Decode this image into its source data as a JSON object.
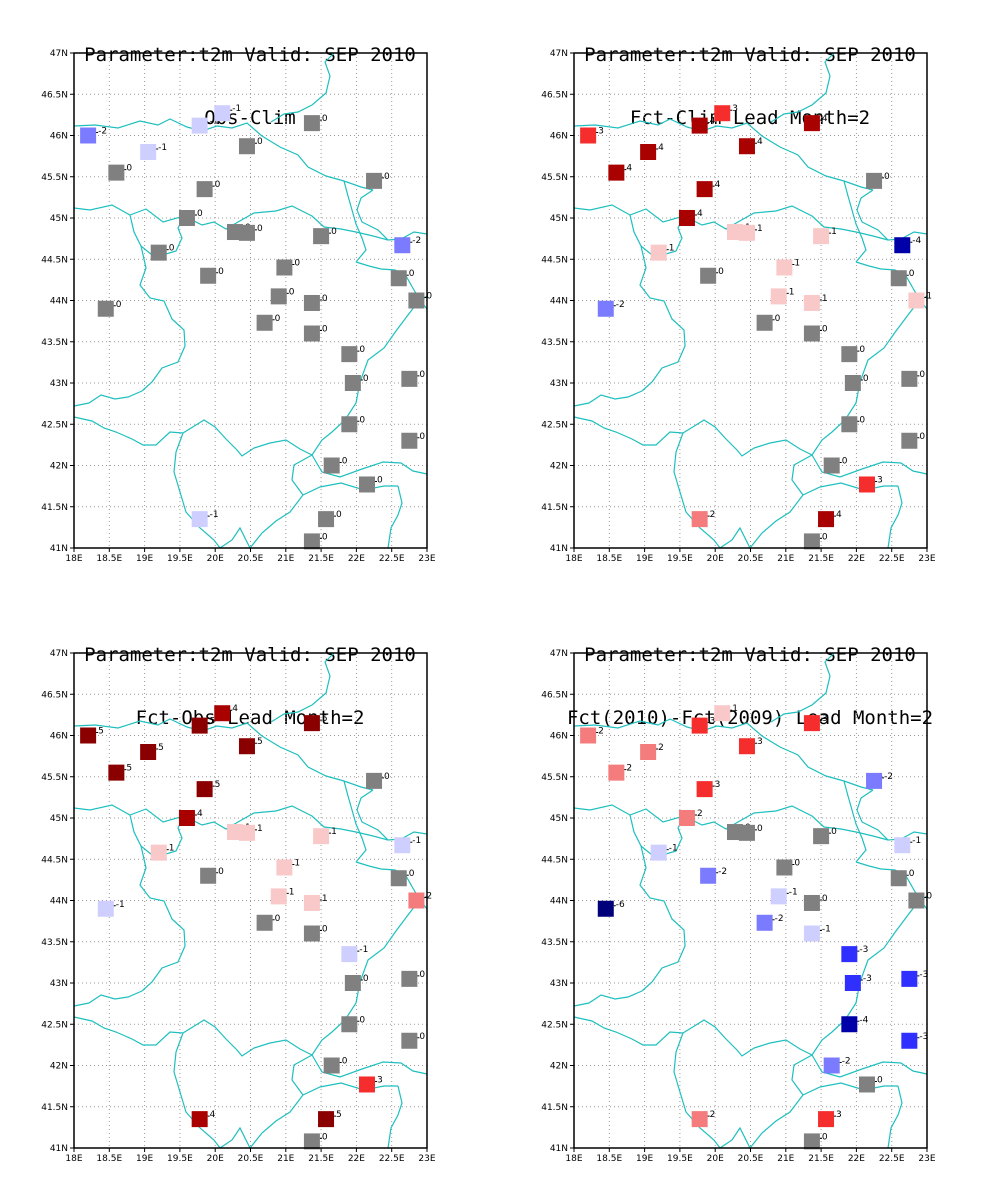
{
  "colors": {
    "coast": "#1fbfbf",
    "grid": "#9a9a9a",
    "frame": "#000000",
    "zero": "#808080"
  },
  "axes": {
    "lon_labels": [
      "18E",
      "18.5E",
      "19E",
      "19.5E",
      "20E",
      "20.5E",
      "21E",
      "21.5E",
      "22E",
      "22.5E",
      "23E"
    ],
    "lat_labels": [
      "41N",
      "41.5N",
      "42N",
      "42.5N",
      "43N",
      "43.5N",
      "44N",
      "44.5N",
      "45N",
      "45.5N",
      "46N",
      "46.5N",
      "47N"
    ],
    "lon_range": [
      18,
      23
    ],
    "lat_range": [
      41,
      47
    ]
  },
  "stations": [
    {
      "lon": 18.2,
      "lat": 46.0
    },
    {
      "lon": 18.45,
      "lat": 43.9
    },
    {
      "lon": 18.6,
      "lat": 45.55
    },
    {
      "lon": 19.05,
      "lat": 45.8
    },
    {
      "lon": 19.2,
      "lat": 44.58
    },
    {
      "lon": 19.6,
      "lat": 45.0
    },
    {
      "lon": 19.78,
      "lat": 46.12
    },
    {
      "lon": 19.78,
      "lat": 41.35
    },
    {
      "lon": 19.85,
      "lat": 45.35
    },
    {
      "lon": 19.9,
      "lat": 44.3
    },
    {
      "lon": 20.1,
      "lat": 46.27
    },
    {
      "lon": 20.28,
      "lat": 44.83
    },
    {
      "lon": 20.45,
      "lat": 45.87
    },
    {
      "lon": 20.45,
      "lat": 44.82
    },
    {
      "lon": 20.7,
      "lat": 43.73
    },
    {
      "lon": 20.9,
      "lat": 44.05
    },
    {
      "lon": 20.98,
      "lat": 44.4
    },
    {
      "lon": 21.37,
      "lat": 46.15
    },
    {
      "lon": 21.37,
      "lat": 43.97
    },
    {
      "lon": 21.37,
      "lat": 43.6
    },
    {
      "lon": 21.37,
      "lat": 41.08
    },
    {
      "lon": 21.5,
      "lat": 44.78
    },
    {
      "lon": 21.57,
      "lat": 41.35
    },
    {
      "lon": 21.65,
      "lat": 42.0
    },
    {
      "lon": 21.9,
      "lat": 43.35
    },
    {
      "lon": 21.9,
      "lat": 42.5
    },
    {
      "lon": 21.95,
      "lat": 43.0
    },
    {
      "lon": 22.15,
      "lat": 41.77
    },
    {
      "lon": 22.25,
      "lat": 45.45
    },
    {
      "lon": 22.6,
      "lat": 44.27
    },
    {
      "lon": 22.65,
      "lat": 44.67
    },
    {
      "lon": 22.75,
      "lat": 43.05
    },
    {
      "lon": 22.75,
      "lat": 42.3
    },
    {
      "lon": 22.85,
      "lat": 44.0
    }
  ],
  "panels": [
    {
      "title1": "Parameter:t2m Valid: SEP 2010",
      "title2": "Obs-Clim",
      "values": [
        -2,
        0,
        0,
        -1,
        0,
        0,
        -1,
        -1,
        0,
        0,
        -1,
        0,
        0,
        0,
        0,
        0,
        0,
        0,
        0,
        0,
        0,
        0,
        0,
        0,
        0,
        0,
        0,
        0,
        0,
        0,
        -2,
        0,
        0,
        0
      ]
    },
    {
      "title1": "Parameter:t2m Valid: SEP 2010",
      "title2": "Fct-Clim Lead Month=2",
      "values": [
        3,
        -2,
        4,
        4,
        1,
        4,
        4,
        2,
        4,
        0,
        3,
        1,
        4,
        1,
        0,
        1,
        1,
        4,
        1,
        0,
        0,
        1,
        4,
        0,
        0,
        0,
        0,
        3,
        0,
        0,
        -4,
        0,
        0,
        1
      ]
    },
    {
      "title1": "Parameter:t2m Valid: SEP 2010",
      "title2": "Fct-Obs Lead Month=2",
      "values": [
        5,
        -1,
        5,
        5,
        1,
        4,
        5,
        4,
        5,
        0,
        4,
        1,
        5,
        1,
        0,
        1,
        1,
        5,
        1,
        0,
        0,
        1,
        5,
        0,
        -1,
        0,
        0,
        3,
        0,
        0,
        -1,
        0,
        0,
        2
      ]
    },
    {
      "title1": "Parameter:t2m Valid: SEP 2010",
      "title2": "Fct(2010)-Fct(2009) Lead Month=2",
      "values": [
        2,
        -6,
        2,
        2,
        -1,
        2,
        3,
        2,
        3,
        -2,
        1,
        0,
        3,
        0,
        -2,
        -1,
        0,
        3,
        0,
        -1,
        0,
        0,
        3,
        -2,
        -3,
        -4,
        -3,
        0,
        -2,
        0,
        -1,
        -3,
        -3,
        0
      ]
    }
  ]
}
